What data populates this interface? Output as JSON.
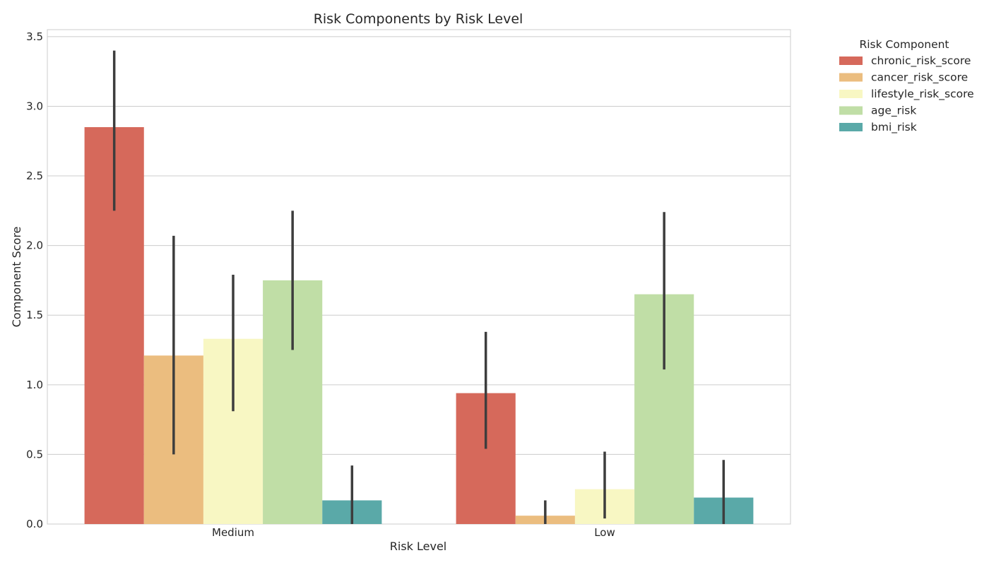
{
  "chart_data": {
    "type": "bar",
    "title": "Risk Components by Risk Level",
    "xlabel": "Risk Level",
    "ylabel": "Component Score",
    "categories": [
      "Medium",
      "Low"
    ],
    "ylim": [
      0,
      3.55
    ],
    "yticks": [
      "0.0",
      "0.5",
      "1.0",
      "1.5",
      "2.0",
      "2.5",
      "3.0",
      "3.5"
    ],
    "grid": true,
    "legend": {
      "title": "Risk Component",
      "placement": "outside-top-right"
    },
    "series": [
      {
        "name": "chronic_risk_score",
        "color": "#d6695b",
        "values": [
          2.85,
          0.94
        ],
        "ci_low": [
          2.25,
          0.54
        ],
        "ci_high": [
          3.4,
          1.38
        ]
      },
      {
        "name": "cancer_risk_score",
        "color": "#ebbd7f",
        "values": [
          1.21,
          0.06
        ],
        "ci_low": [
          0.5,
          0.0
        ],
        "ci_high": [
          2.07,
          0.17
        ]
      },
      {
        "name": "lifestyle_risk_score",
        "color": "#f8f7c3",
        "values": [
          1.33,
          0.25
        ],
        "ci_low": [
          0.81,
          0.04
        ],
        "ci_high": [
          1.79,
          0.52
        ]
      },
      {
        "name": "age_risk",
        "color": "#c0dea6",
        "values": [
          1.75,
          1.65
        ],
        "ci_low": [
          1.25,
          1.11
        ],
        "ci_high": [
          2.25,
          2.24
        ]
      },
      {
        "name": "bmi_risk",
        "color": "#5aa9a8",
        "values": [
          0.17,
          0.19
        ],
        "ci_low": [
          0.0,
          0.0
        ],
        "ci_high": [
          0.42,
          0.46
        ]
      }
    ]
  }
}
